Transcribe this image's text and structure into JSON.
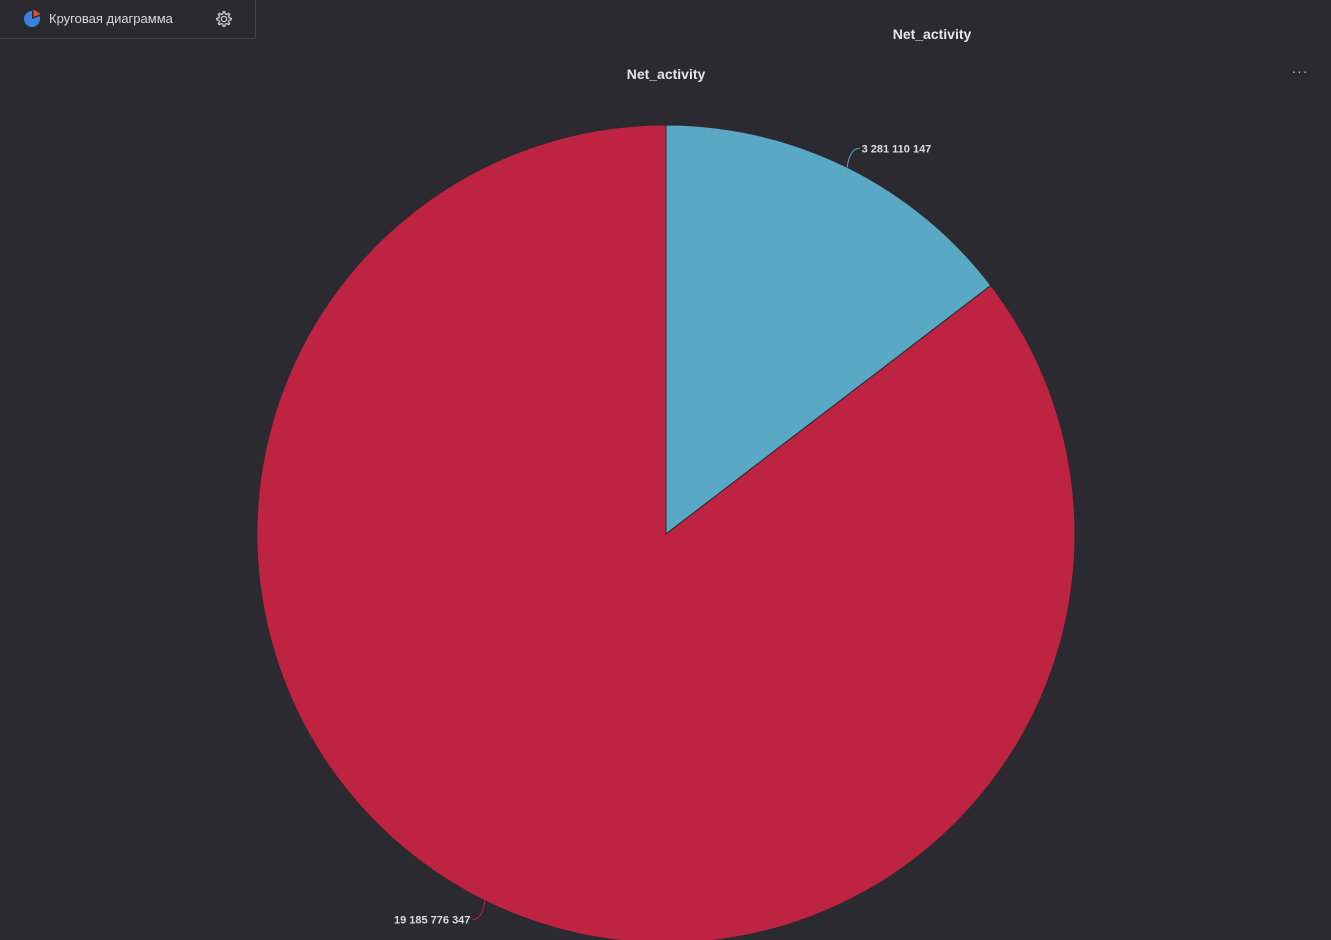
{
  "toolbar": {
    "chart_type_label": "Круговая диаграмма",
    "chart_type_icon": "pie-chart-icon",
    "settings_icon": "gear-icon"
  },
  "widget": {
    "title": "Net_activity",
    "more_label": "···"
  },
  "colors": {
    "background": "#2b2a30",
    "slice_blue": "#58a8c6",
    "slice_red": "#be2342",
    "text": "#e6e6ea"
  },
  "chart_data": {
    "type": "pie",
    "title": "Net_activity",
    "slices": [
      {
        "value": 3281110147,
        "label": "3 281 110 147",
        "color": "#58a8c6"
      },
      {
        "value": 19185776347,
        "label": "19 185 776 347",
        "color": "#be2342"
      }
    ]
  }
}
